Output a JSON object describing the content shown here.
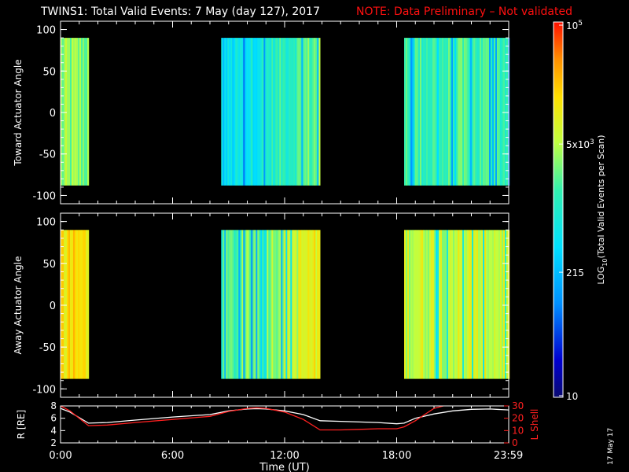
{
  "title": "TWINS1: Total Valid Events:  7 May (day 127), 2017",
  "note": "NOTE: Data Preliminary – Not validated",
  "stamp": "17 May 17",
  "colors": {
    "background": "#000000",
    "axes": "#ffffff",
    "note": "#ff1010",
    "r_line": "#ffffff",
    "lshell_line": "#ff2020"
  },
  "colorbar": {
    "label": "LOG10(Total Valid Events per Scan)",
    "ticks": [
      {
        "label": "10^5",
        "value": 100000
      },
      {
        "label": "5x10^3",
        "value": 5000
      },
      {
        "label": "215",
        "value": 215
      },
      {
        "label": "10",
        "value": 10
      }
    ],
    "range": [
      10,
      100000
    ],
    "scale": "log",
    "colormap": "rainbow (blue-cyan-green-yellow-orange-red)"
  },
  "chart_data": [
    {
      "type": "heatmap",
      "name": "toward",
      "ylabel": "Toward Actuator Angle",
      "xlim": [
        0,
        24
      ],
      "ylim": [
        -110,
        110
      ],
      "yticks": [
        100,
        50,
        0,
        -50,
        -100
      ],
      "angle_range": [
        -88,
        90
      ],
      "coverage": [
        {
          "start": 0.0,
          "end": 1.45,
          "level": 0.62
        },
        {
          "start": 8.6,
          "end": 13.9,
          "level": 0.5
        },
        {
          "start": 18.4,
          "end": 24.0,
          "level": 0.55
        }
      ]
    },
    {
      "type": "heatmap",
      "name": "away",
      "ylabel": "Away Actuator Angle",
      "xlim": [
        0,
        24
      ],
      "ylim": [
        -110,
        110
      ],
      "yticks": [
        100,
        50,
        0,
        -50,
        -100
      ],
      "angle_range": [
        -88,
        90
      ],
      "coverage": [
        {
          "start": 0.0,
          "end": 1.45,
          "level": 0.78
        },
        {
          "start": 8.6,
          "end": 13.9,
          "level": 0.65
        },
        {
          "start": 18.4,
          "end": 24.0,
          "level": 0.7
        }
      ]
    },
    {
      "type": "line",
      "name": "orbit",
      "xlabel": "Time (UT)",
      "ylabel": "R [RE]",
      "y2label": "L Shell",
      "xlim": [
        0,
        24
      ],
      "ylim": [
        2,
        8
      ],
      "y2lim": [
        0,
        30
      ],
      "xticks": [
        {
          "value": 0,
          "label": "0:00"
        },
        {
          "value": 6,
          "label": "6:00"
        },
        {
          "value": 12,
          "label": "12:00"
        },
        {
          "value": 18,
          "label": "18:00"
        },
        {
          "value": 23.983,
          "label": "23:59"
        }
      ],
      "yticks": [
        2,
        4,
        6,
        8
      ],
      "y2ticks": [
        0,
        10,
        20,
        30
      ],
      "series": [
        {
          "color": "#ffffff",
          "axis": "left",
          "x": [
            0,
            0.5,
            1.5,
            2.5,
            4,
            6,
            8,
            9,
            10,
            10.5,
            11,
            12,
            13,
            13.9,
            15,
            16,
            17,
            18,
            18.4,
            19,
            20,
            21,
            22,
            23,
            24
          ],
          "y": [
            7.6,
            7.0,
            5.2,
            5.3,
            5.7,
            6.2,
            6.6,
            7.2,
            7.5,
            7.55,
            7.5,
            7.2,
            6.6,
            5.6,
            5.5,
            5.4,
            5.3,
            5.1,
            5.2,
            6.0,
            6.7,
            7.2,
            7.45,
            7.5,
            7.35
          ]
        },
        {
          "color": "#ff2020",
          "axis": "right",
          "x": [
            0,
            0.5,
            1.5,
            2.5,
            4,
            6,
            8,
            9,
            10,
            10.5,
            11,
            12,
            13,
            13.9,
            15,
            16,
            17,
            18,
            18.4,
            19,
            19.5,
            20,
            20.5
          ],
          "y": [
            30,
            26,
            14,
            14.5,
            16.5,
            19,
            21.5,
            25.5,
            28,
            28.5,
            28,
            25,
            19,
            10.5,
            10.5,
            11,
            11.5,
            11.5,
            13,
            18,
            23,
            28,
            31
          ]
        }
      ]
    }
  ]
}
